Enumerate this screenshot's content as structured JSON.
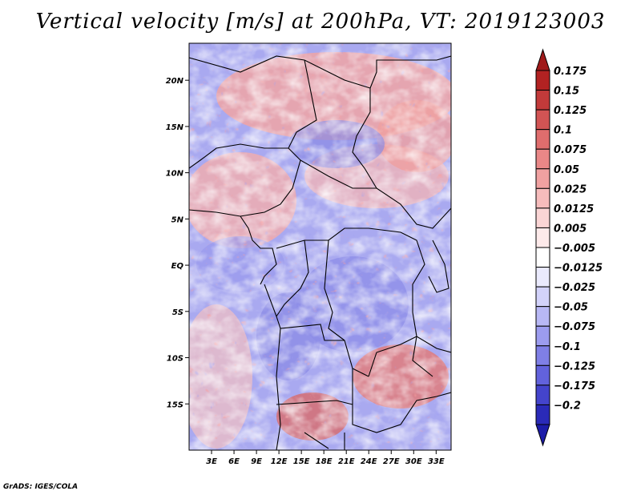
{
  "title": "Vertical velocity [m/s] at 200hPa, VT: 2019123003",
  "footer": "GrADS: IGES/COLA",
  "map": {
    "variable": "Vertical velocity",
    "units": "m/s",
    "level": "200hPa",
    "valid_time": "2019123003",
    "lon_range": [
      0,
      35
    ],
    "lat_range": [
      -20,
      24
    ],
    "lon_ticks": [
      {
        "value": 3,
        "label": "3E"
      },
      {
        "value": 6,
        "label": "6E"
      },
      {
        "value": 9,
        "label": "9E"
      },
      {
        "value": 12,
        "label": "12E"
      },
      {
        "value": 15,
        "label": "15E"
      },
      {
        "value": 18,
        "label": "18E"
      },
      {
        "value": 21,
        "label": "21E"
      },
      {
        "value": 24,
        "label": "24E"
      },
      {
        "value": 27,
        "label": "27E"
      },
      {
        "value": 30,
        "label": "30E"
      },
      {
        "value": 33,
        "label": "33E"
      }
    ],
    "lat_ticks": [
      {
        "value": 20,
        "label": "20N"
      },
      {
        "value": 15,
        "label": "15N"
      },
      {
        "value": 10,
        "label": "10N"
      },
      {
        "value": 5,
        "label": "5N"
      },
      {
        "value": 0,
        "label": "EQ"
      },
      {
        "value": -5,
        "label": "5S"
      },
      {
        "value": -10,
        "label": "10S"
      },
      {
        "value": -15,
        "label": "15S"
      }
    ]
  },
  "colorbar": {
    "levels": [
      {
        "label": "0.175",
        "color": "#b22222"
      },
      {
        "label": "0.15",
        "color": "#c23a3a"
      },
      {
        "label": "0.125",
        "color": "#d25454"
      },
      {
        "label": "0.1",
        "color": "#df6d6d"
      },
      {
        "label": "0.075",
        "color": "#e98787"
      },
      {
        "label": "0.05",
        "color": "#f0a1a1"
      },
      {
        "label": "0.025",
        "color": "#f6bcbc"
      },
      {
        "label": "0.0125",
        "color": "#fad5d5"
      },
      {
        "label": "0.005",
        "color": "#fdeaea"
      },
      {
        "label": "−0.005",
        "color": "#ffffff"
      },
      {
        "label": "−0.0125",
        "color": "#eaeafd"
      },
      {
        "label": "−0.025",
        "color": "#d2d2fa"
      },
      {
        "label": "−0.05",
        "color": "#b8b8f5"
      },
      {
        "label": "−0.075",
        "color": "#9c9cef"
      },
      {
        "label": "−0.1",
        "color": "#7f7fe6"
      },
      {
        "label": "−0.125",
        "color": "#6262dc"
      },
      {
        "label": "−0.175",
        "color": "#4444cc"
      },
      {
        "label": "−0.2",
        "color": "#2a2ab8"
      }
    ],
    "top_triangle_color": "#a01a1a",
    "bottom_triangle_color": "#1c1ca8"
  }
}
